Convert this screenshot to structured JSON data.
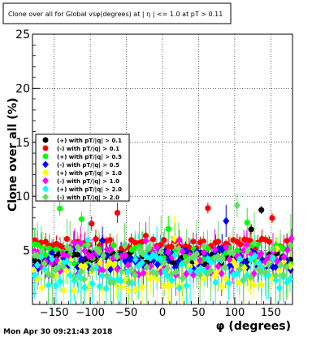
{
  "chart_data": {
    "type": "scatter",
    "title": "Clone  over all for Global vsφ(degrees) at | η | <= 1.0 at pT > 0.11",
    "xlabel": "φ (degrees)",
    "ylabel": "Clone  over all (%)",
    "xlim": [
      -180,
      180
    ],
    "ylim": [
      0,
      25
    ],
    "xticks": [
      -150,
      -100,
      -50,
      0,
      50,
      100,
      150
    ],
    "yticks": [
      0,
      5,
      10,
      15,
      20,
      25
    ],
    "grid": true,
    "legend_position": "left-middle",
    "timestamp": "Mon Apr 30 09:21:43 2018",
    "series": [
      {
        "name": "(+) with pT/|q| > 0.1",
        "color": "#000000",
        "marker": "circle",
        "mean": 4.3,
        "spread": 0.6,
        "err": 0.8,
        "seed": 11
      },
      {
        "name": "(-) with pT/|q| > 0.1",
        "color": "#ff0000",
        "marker": "circle",
        "mean": 5.6,
        "spread": 0.5,
        "err": 0.7,
        "seed": 23
      },
      {
        "name": "(+) with pT/|q| > 0.5",
        "color": "#00ff00",
        "marker": "circle",
        "mean": 4.6,
        "spread": 1.0,
        "err": 1.2,
        "seed": 37
      },
      {
        "name": "(-) with pT/|q| > 0.5",
        "color": "#0000ff",
        "marker": "diamond",
        "mean": 4.2,
        "spread": 1.0,
        "err": 1.2,
        "seed": 41
      },
      {
        "name": "(+) with pT/|q| > 1.0",
        "color": "#ffff00",
        "marker": "diamond",
        "mean": 2.6,
        "spread": 1.4,
        "err": 1.6,
        "seed": 53
      },
      {
        "name": "(-) with pT/|q| > 1.0",
        "color": "#ff00ff",
        "marker": "diamond",
        "mean": 4.0,
        "spread": 1.3,
        "err": 1.5,
        "seed": 67
      },
      {
        "name": "(+) with pT/|q| > 2.0",
        "color": "#00ffff",
        "marker": "diamond",
        "mean": 3.0,
        "spread": 1.6,
        "err": 2.2,
        "seed": 79
      },
      {
        "name": "(-) with pT/|q| > 2.0",
        "color": "#66dd66",
        "marker": "diamond",
        "mean": 3.8,
        "spread": 1.8,
        "err": 2.4,
        "seed": 97
      }
    ],
    "n_points_per_series": 72
  }
}
